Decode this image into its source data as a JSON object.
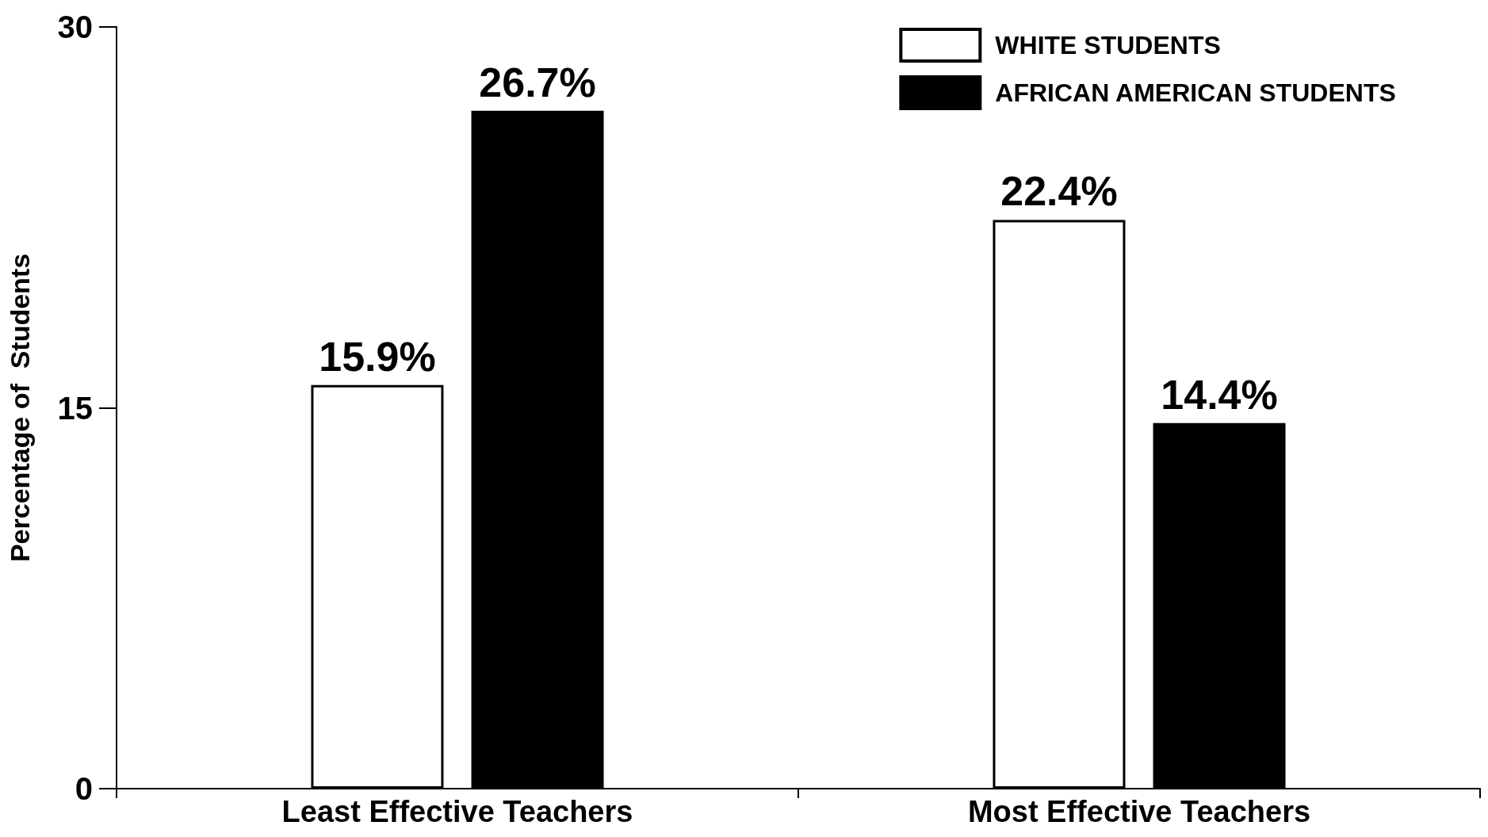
{
  "chart_data": {
    "type": "bar",
    "ylabel": "Percentage of  Students",
    "categories": [
      "Least Effective Teachers",
      "Most Effective Teachers"
    ],
    "series": [
      {
        "name": "WHITE STUDENTS",
        "color": "#ffffff",
        "values": [
          15.9,
          22.4
        ],
        "value_labels": [
          "15.9%",
          "22.4%"
        ]
      },
      {
        "name": "AFRICAN AMERICAN STUDENTS",
        "color": "#000000",
        "values": [
          26.7,
          14.4
        ],
        "value_labels": [
          "26.7%",
          "14.4%"
        ]
      }
    ],
    "ylim": [
      0,
      30
    ],
    "yticks": [
      0,
      15,
      30
    ],
    "grid": false,
    "legend": "top right"
  }
}
